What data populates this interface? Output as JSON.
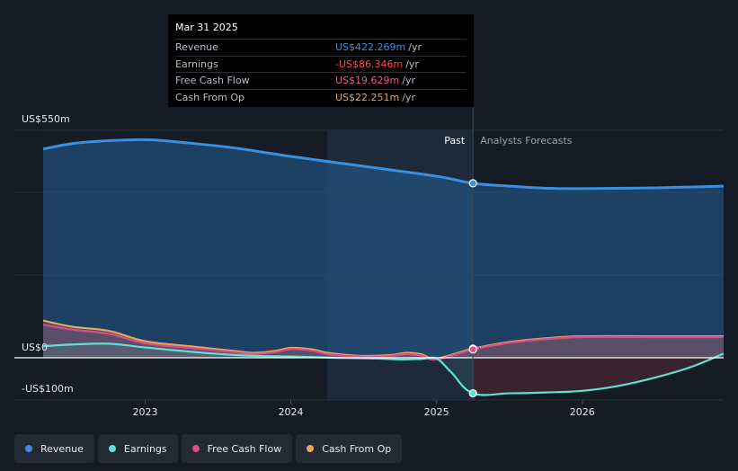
{
  "colors": {
    "revenue": "#3a8fe0",
    "earnings": "#5fe0d0",
    "free_cash_flow": "#d94f8a",
    "cash_from_op": "#e8a85a",
    "earnings_text": "#ff4a4a",
    "fcf_text": "#e85a98"
  },
  "tooltip": {
    "date": "Mar 31 2025",
    "rows": [
      {
        "label": "Revenue",
        "value": "US$422.269m",
        "unit": "/yr"
      },
      {
        "label": "Earnings",
        "value": "-US$86.346m",
        "unit": "/yr"
      },
      {
        "label": "Free Cash Flow",
        "value": "US$19.629m",
        "unit": "/yr"
      },
      {
        "label": "Cash From Op",
        "value": "US$22.251m",
        "unit": "/yr"
      }
    ]
  },
  "legend": [
    {
      "key": "revenue",
      "label": "Revenue"
    },
    {
      "key": "earnings",
      "label": "Earnings"
    },
    {
      "key": "free_cash_flow",
      "label": "Free Cash Flow"
    },
    {
      "key": "cash_from_op",
      "label": "Cash From Op"
    }
  ],
  "chart_data": {
    "type": "area",
    "title": "",
    "xlabel": "",
    "ylabel": "",
    "xlim": [
      2022.3,
      2026.97
    ],
    "ylim": [
      -100,
      550
    ],
    "y_tick_labels": [
      "US$550m",
      "US$0",
      "-US$100m"
    ],
    "y_ticks": [
      550,
      0,
      -100
    ],
    "gridlines_y": [
      400,
      200
    ],
    "x_ticks": [
      2023,
      2024,
      2025,
      2026
    ],
    "x_tick_labels": [
      "2023",
      "2024",
      "2025",
      "2026"
    ],
    "past_label": "Past",
    "forecast_label": "Analysts Forecasts",
    "divider_x": 2025.25,
    "shaded_from_x": 2024.25,
    "series": [
      {
        "name": "Revenue",
        "key": "revenue",
        "x": [
          2022.3,
          2022.5,
          2022.7,
          2022.9,
          2023.05,
          2023.25,
          2023.6,
          2024.0,
          2024.5,
          2025.0,
          2025.25,
          2025.5,
          2025.75,
          2026.0,
          2026.5,
          2026.97
        ],
        "y": [
          505,
          518,
          524,
          527,
          527,
          521,
          508,
          487,
          463,
          439,
          422,
          415,
          410,
          409,
          411,
          415
        ]
      },
      {
        "name": "Cash From Op",
        "key": "cash_from_op",
        "x": [
          2022.3,
          2022.5,
          2022.75,
          2023.0,
          2023.3,
          2023.6,
          2023.75,
          2023.9,
          2024.0,
          2024.15,
          2024.25,
          2024.45,
          2024.6,
          2024.7,
          2024.8,
          2024.9,
          2025.0,
          2025.25,
          2025.5,
          2025.75,
          2026.0,
          2026.5,
          2026.97
        ],
        "y": [
          90,
          75,
          65,
          40,
          28,
          17,
          12,
          17,
          24,
          20,
          12,
          5,
          5,
          7,
          12,
          8,
          -2,
          22,
          38,
          47,
          52,
          52,
          52
        ]
      },
      {
        "name": "Free Cash Flow",
        "key": "free_cash_flow",
        "x": [
          2022.3,
          2022.5,
          2022.75,
          2023.0,
          2023.3,
          2023.6,
          2023.75,
          2023.9,
          2024.0,
          2024.15,
          2024.25,
          2024.45,
          2024.6,
          2024.7,
          2024.8,
          2024.9,
          2025.0,
          2025.25,
          2025.5,
          2025.75,
          2026.0,
          2026.5,
          2026.97
        ],
        "y": [
          80,
          68,
          58,
          35,
          24,
          14,
          9,
          14,
          21,
          17,
          9,
          3,
          3,
          5,
          9,
          5,
          -4,
          20,
          36,
          45,
          50,
          50,
          50
        ]
      },
      {
        "name": "Earnings",
        "key": "earnings",
        "x": [
          2022.3,
          2022.5,
          2022.75,
          2023.0,
          2023.3,
          2023.6,
          2023.8,
          2024.0,
          2024.3,
          2024.6,
          2024.75,
          2024.9,
          2025.0,
          2025.1,
          2025.25,
          2025.5,
          2025.75,
          2026.0,
          2026.25,
          2026.5,
          2026.75,
          2026.97
        ],
        "y": [
          28,
          32,
          34,
          25,
          15,
          7,
          4,
          3,
          0,
          -2,
          -4,
          -3,
          -2,
          -35,
          -86,
          -86,
          -84,
          -80,
          -68,
          -48,
          -22,
          10
        ]
      }
    ]
  }
}
